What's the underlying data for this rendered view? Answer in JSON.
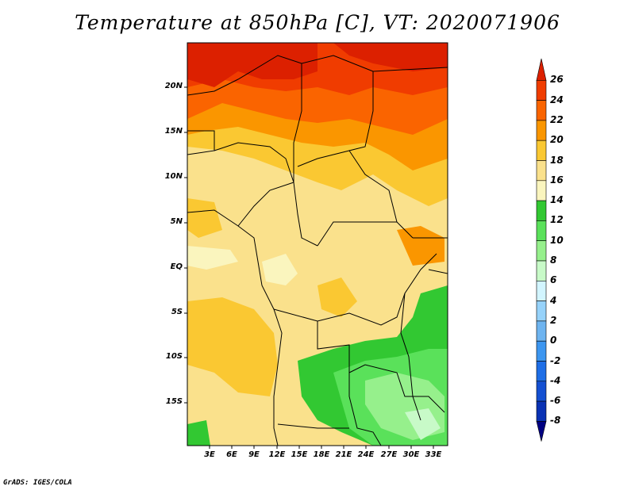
{
  "title": "Temperature at 850hPa [C], VT: 2020071906",
  "credit": "GrADS: IGES/COLA",
  "map": {
    "lat_labels": [
      "20N",
      "15N",
      "10N",
      "5N",
      "EQ",
      "5S",
      "10S",
      "15S"
    ],
    "lon_labels": [
      "3E",
      "6E",
      "9E",
      "12E",
      "15E",
      "18E",
      "21E",
      "24E",
      "27E",
      "30E",
      "33E"
    ]
  },
  "colorbar": {
    "labels": [
      "26",
      "24",
      "22",
      "20",
      "18",
      "16",
      "14",
      "12",
      "10",
      "8",
      "6",
      "4",
      "2",
      "0",
      "-2",
      "-4",
      "-6",
      "-8"
    ],
    "colors": [
      "#dc2000",
      "#f03c00",
      "#fa6400",
      "#fa9600",
      "#fac832",
      "#fae18c",
      "#faf5be",
      "#32c832",
      "#5ae15a",
      "#96f08c",
      "#c8fac8",
      "#d2f5ff",
      "#96d2fa",
      "#6eb4f0",
      "#3c96f0",
      "#1e6ee6",
      "#1450d2",
      "#0a32b4",
      "#000082"
    ]
  }
}
